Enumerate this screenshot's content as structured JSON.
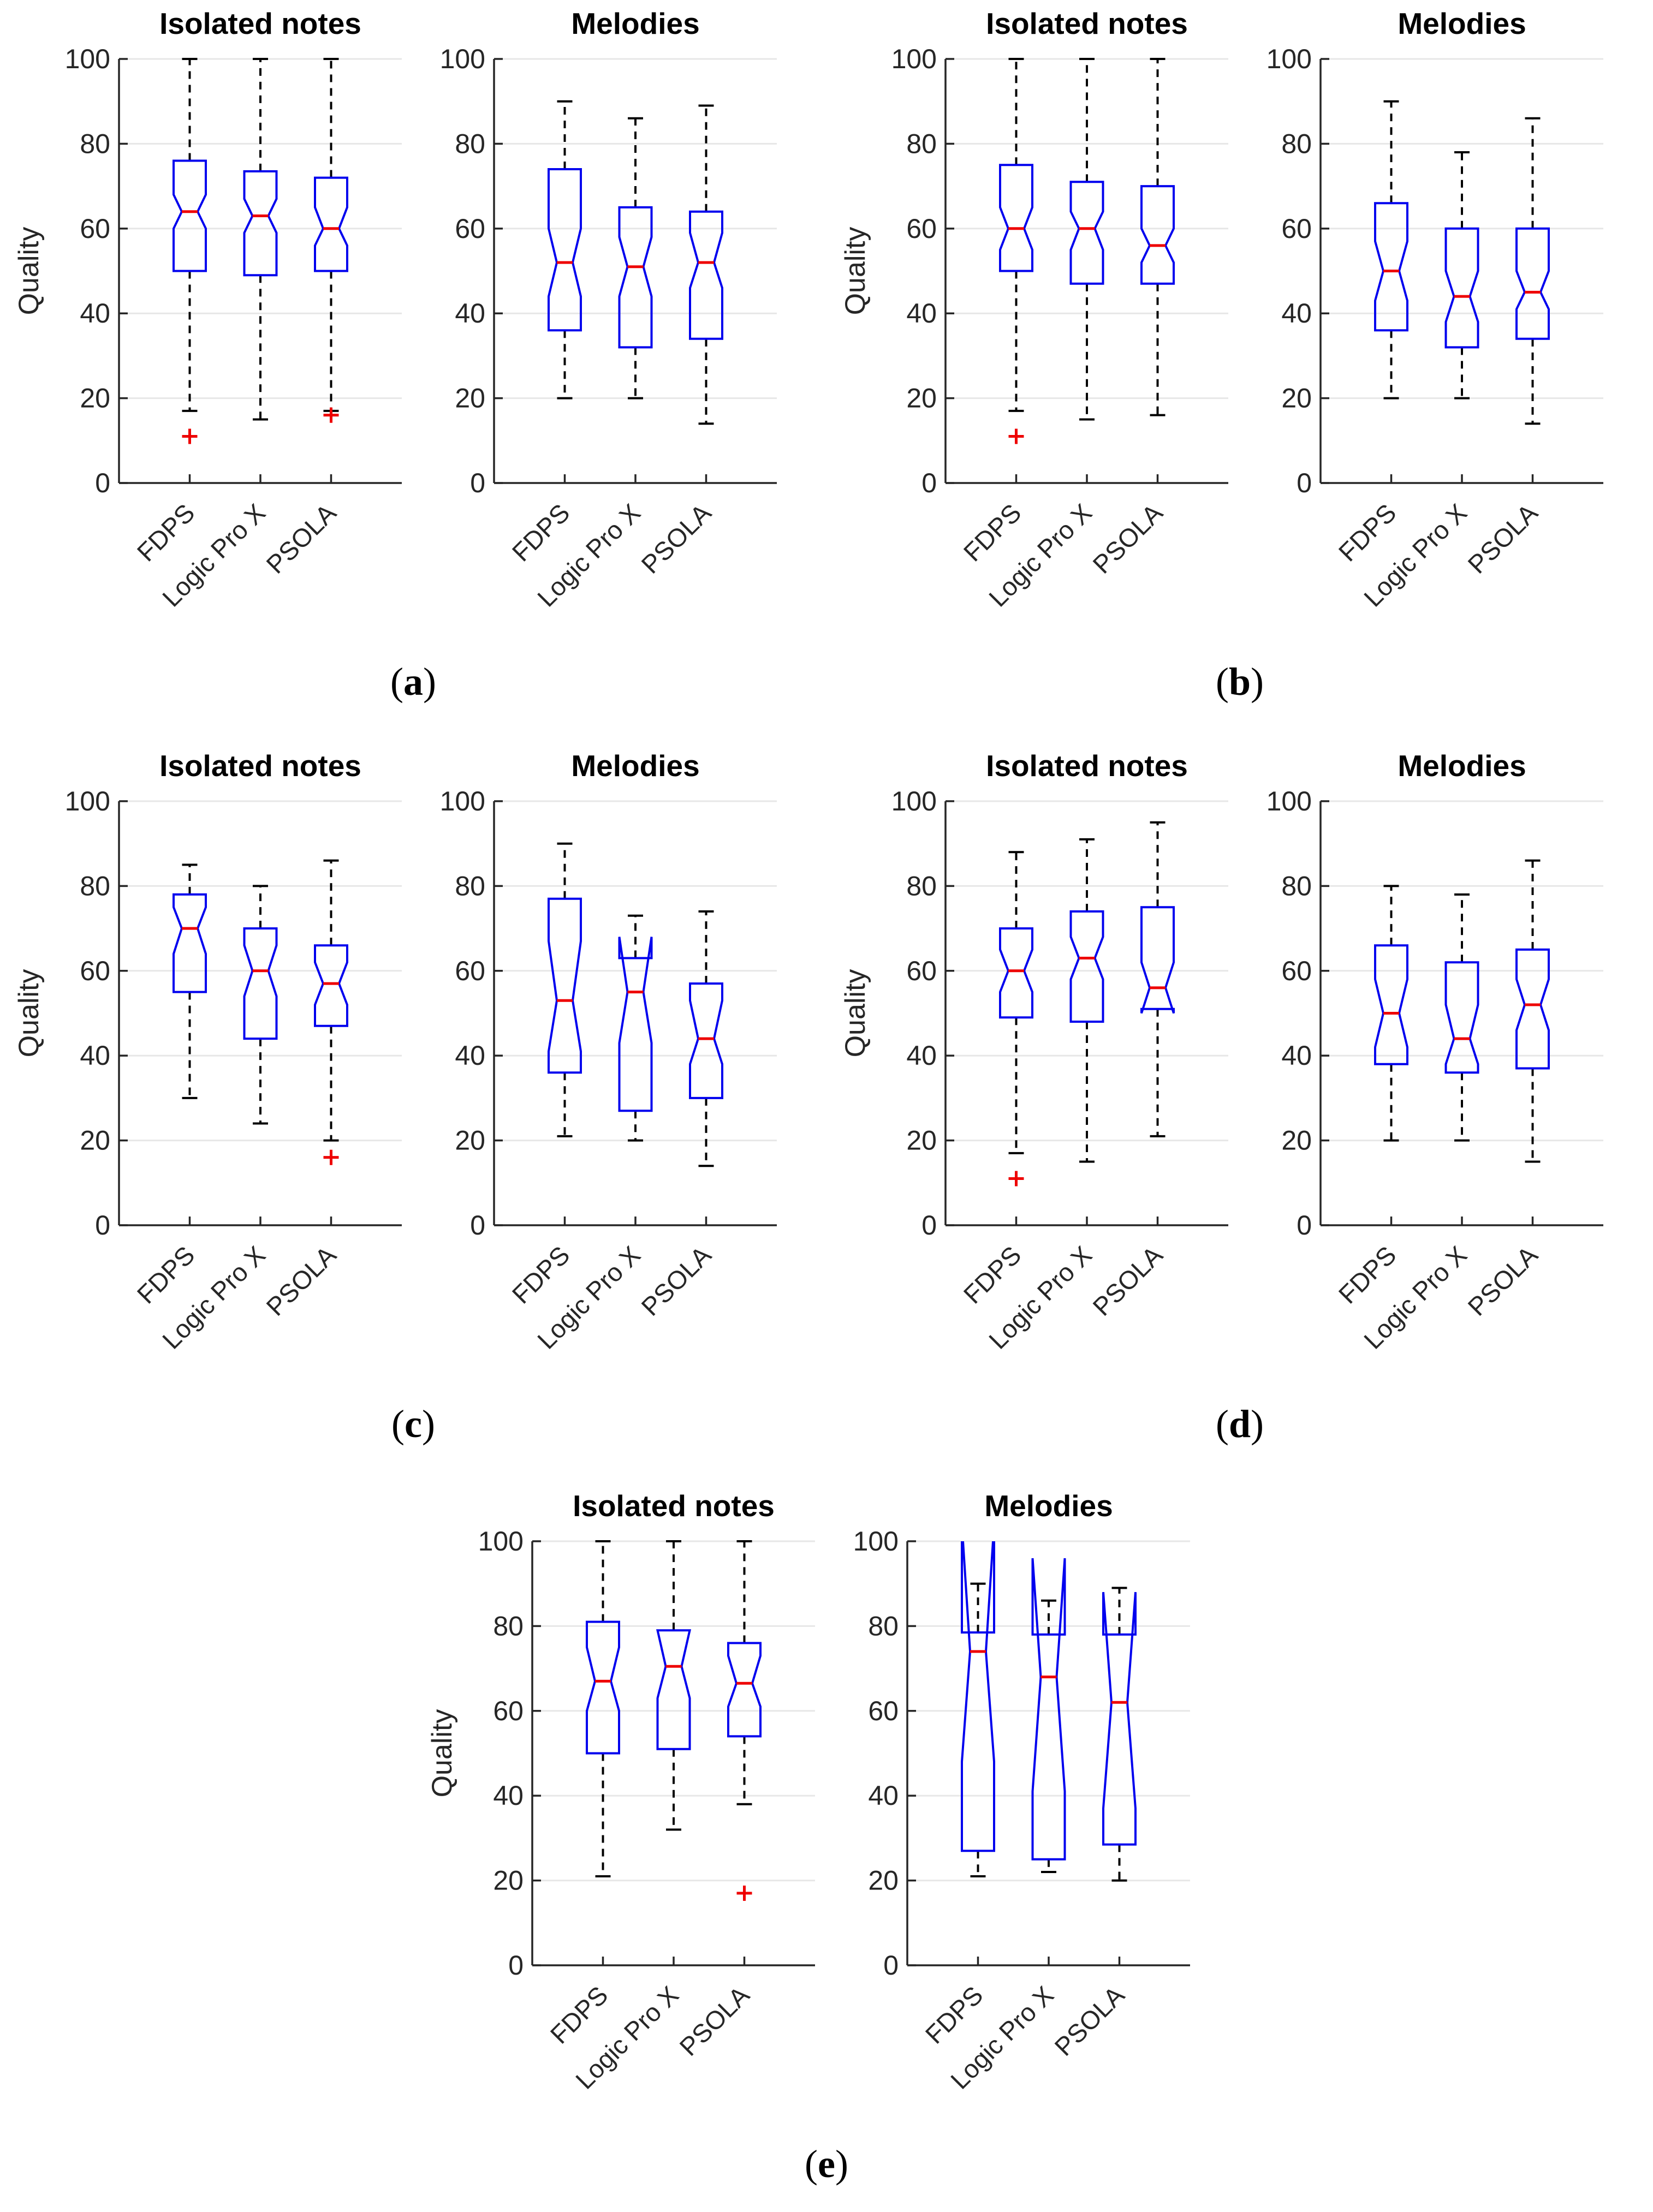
{
  "figure": {
    "caption_open": "(",
    "caption_close": ")",
    "panels": [
      {
        "caption_letter": "a"
      },
      {
        "caption_letter": "b"
      },
      {
        "caption_letter": "c"
      },
      {
        "caption_letter": "d"
      },
      {
        "caption_letter": "e"
      }
    ],
    "colors": {
      "box": "#0000ee",
      "median": "#ee0000",
      "whisker": "#000000",
      "outlier": "#ee0000",
      "grid": "#e7e7e7",
      "axis": "#262626",
      "text": "#262626",
      "title": "#000000"
    }
  },
  "chart_data": [
    {
      "type": "boxplot",
      "notched": true,
      "panel": "a",
      "side": "left",
      "title": "Isolated notes",
      "ylabel": "Quality",
      "categories": [
        "FDPS",
        "Logic Pro X",
        "PSOLA"
      ],
      "ylim": [
        0,
        100
      ],
      "yticks": [
        0,
        20,
        40,
        60,
        80,
        100
      ],
      "grid": true,
      "boxes": [
        {
          "label": "FDPS",
          "whislo": 17,
          "q1": 50,
          "med": 64,
          "q3": 76,
          "whishi": 100,
          "notch_lo": 60,
          "notch_hi": 68,
          "fliers": [
            11
          ]
        },
        {
          "label": "Logic Pro X",
          "whislo": 15,
          "q1": 49,
          "med": 63,
          "q3": 73.5,
          "whishi": 100,
          "notch_lo": 59,
          "notch_hi": 67,
          "fliers": []
        },
        {
          "label": "PSOLA",
          "whislo": 17,
          "q1": 50,
          "med": 60,
          "q3": 72,
          "whishi": 100,
          "notch_lo": 56,
          "notch_hi": 65,
          "fliers": [
            16
          ]
        }
      ]
    },
    {
      "type": "boxplot",
      "notched": true,
      "panel": "a",
      "side": "right",
      "title": "Melodies",
      "ylabel": "",
      "categories": [
        "FDPS",
        "Logic Pro X",
        "PSOLA"
      ],
      "ylim": [
        0,
        100
      ],
      "yticks": [
        0,
        20,
        40,
        60,
        80,
        100
      ],
      "grid": true,
      "boxes": [
        {
          "label": "FDPS",
          "whislo": 20,
          "q1": 36,
          "med": 52,
          "q3": 74,
          "whishi": 90,
          "notch_lo": 44,
          "notch_hi": 60,
          "fliers": []
        },
        {
          "label": "Logic Pro X",
          "whislo": 20,
          "q1": 32,
          "med": 51,
          "q3": 65,
          "whishi": 86,
          "notch_lo": 44,
          "notch_hi": 58,
          "fliers": []
        },
        {
          "label": "PSOLA",
          "whislo": 14,
          "q1": 34,
          "med": 52,
          "q3": 64,
          "whishi": 89,
          "notch_lo": 46,
          "notch_hi": 59,
          "fliers": []
        }
      ]
    },
    {
      "type": "boxplot",
      "notched": true,
      "panel": "b",
      "side": "left",
      "title": "Isolated notes",
      "ylabel": "Quality",
      "categories": [
        "FDPS",
        "Logic Pro X",
        "PSOLA"
      ],
      "ylim": [
        0,
        100
      ],
      "yticks": [
        0,
        20,
        40,
        60,
        80,
        100
      ],
      "grid": true,
      "boxes": [
        {
          "label": "FDPS",
          "whislo": 17,
          "q1": 50,
          "med": 60,
          "q3": 75,
          "whishi": 100,
          "notch_lo": 55,
          "notch_hi": 65,
          "fliers": [
            11
          ]
        },
        {
          "label": "Logic Pro X",
          "whislo": 15,
          "q1": 47,
          "med": 60,
          "q3": 71,
          "whishi": 100,
          "notch_lo": 55,
          "notch_hi": 64,
          "fliers": []
        },
        {
          "label": "PSOLA",
          "whislo": 16,
          "q1": 47,
          "med": 56,
          "q3": 70,
          "whishi": 100,
          "notch_lo": 52,
          "notch_hi": 60,
          "fliers": []
        }
      ]
    },
    {
      "type": "boxplot",
      "notched": true,
      "panel": "b",
      "side": "right",
      "title": "Melodies",
      "ylabel": "",
      "categories": [
        "FDPS",
        "Logic Pro X",
        "PSOLA"
      ],
      "ylim": [
        0,
        100
      ],
      "yticks": [
        0,
        20,
        40,
        60,
        80,
        100
      ],
      "grid": true,
      "boxes": [
        {
          "label": "FDPS",
          "whislo": 20,
          "q1": 36,
          "med": 50,
          "q3": 66,
          "whishi": 90,
          "notch_lo": 43,
          "notch_hi": 57,
          "fliers": []
        },
        {
          "label": "Logic Pro X",
          "whislo": 20,
          "q1": 32,
          "med": 44,
          "q3": 60,
          "whishi": 78,
          "notch_lo": 38,
          "notch_hi": 50,
          "fliers": []
        },
        {
          "label": "PSOLA",
          "whislo": 14,
          "q1": 34,
          "med": 45,
          "q3": 60,
          "whishi": 86,
          "notch_lo": 41,
          "notch_hi": 50,
          "fliers": []
        }
      ]
    },
    {
      "type": "boxplot",
      "notched": true,
      "panel": "c",
      "side": "left",
      "title": "Isolated notes",
      "ylabel": "Quality",
      "categories": [
        "FDPS",
        "Logic Pro X",
        "PSOLA"
      ],
      "ylim": [
        0,
        100
      ],
      "yticks": [
        0,
        20,
        40,
        60,
        80,
        100
      ],
      "grid": true,
      "boxes": [
        {
          "label": "FDPS",
          "whislo": 30,
          "q1": 55,
          "med": 70,
          "q3": 78,
          "whishi": 85,
          "notch_lo": 64,
          "notch_hi": 75,
          "fliers": []
        },
        {
          "label": "Logic Pro X",
          "whislo": 24,
          "q1": 44,
          "med": 60,
          "q3": 70,
          "whishi": 80,
          "notch_lo": 54,
          "notch_hi": 66,
          "fliers": []
        },
        {
          "label": "PSOLA",
          "whislo": 20,
          "q1": 47,
          "med": 57,
          "q3": 66,
          "whishi": 86,
          "notch_lo": 52,
          "notch_hi": 62,
          "fliers": [
            16
          ]
        }
      ]
    },
    {
      "type": "boxplot",
      "notched": true,
      "panel": "c",
      "side": "right",
      "title": "Melodies",
      "ylabel": "",
      "categories": [
        "FDPS",
        "Logic Pro X",
        "PSOLA"
      ],
      "ylim": [
        0,
        100
      ],
      "yticks": [
        0,
        20,
        40,
        60,
        80,
        100
      ],
      "grid": true,
      "boxes": [
        {
          "label": "FDPS",
          "whislo": 21,
          "q1": 36,
          "med": 53,
          "q3": 77,
          "whishi": 90,
          "notch_lo": 41,
          "notch_hi": 67,
          "fliers": []
        },
        {
          "label": "Logic Pro X",
          "whislo": 20,
          "q1": 27,
          "med": 55,
          "q3": 63,
          "whishi": 73,
          "notch_lo": 43,
          "notch_hi": 68,
          "fliers": []
        },
        {
          "label": "PSOLA",
          "whislo": 14,
          "q1": 30,
          "med": 44,
          "q3": 57,
          "whishi": 74,
          "notch_lo": 38,
          "notch_hi": 53,
          "fliers": []
        }
      ]
    },
    {
      "type": "boxplot",
      "notched": true,
      "panel": "d",
      "side": "left",
      "title": "Isolated notes",
      "ylabel": "Quality",
      "categories": [
        "FDPS",
        "Logic Pro X",
        "PSOLA"
      ],
      "ylim": [
        0,
        100
      ],
      "yticks": [
        0,
        20,
        40,
        60,
        80,
        100
      ],
      "grid": true,
      "boxes": [
        {
          "label": "FDPS",
          "whislo": 17,
          "q1": 49,
          "med": 60,
          "q3": 70,
          "whishi": 88,
          "notch_lo": 55,
          "notch_hi": 65,
          "fliers": [
            11
          ]
        },
        {
          "label": "Logic Pro X",
          "whislo": 15,
          "q1": 48,
          "med": 63,
          "q3": 74,
          "whishi": 91,
          "notch_lo": 58,
          "notch_hi": 68,
          "fliers": []
        },
        {
          "label": "PSOLA",
          "whislo": 21,
          "q1": 51,
          "med": 56,
          "q3": 75,
          "whishi": 95,
          "notch_lo": 50,
          "notch_hi": 62,
          "fliers": []
        }
      ]
    },
    {
      "type": "boxplot",
      "notched": true,
      "panel": "d",
      "side": "right",
      "title": "Melodies",
      "ylabel": "",
      "categories": [
        "FDPS",
        "Logic Pro X",
        "PSOLA"
      ],
      "ylim": [
        0,
        100
      ],
      "yticks": [
        0,
        20,
        40,
        60,
        80,
        100
      ],
      "grid": true,
      "boxes": [
        {
          "label": "FDPS",
          "whislo": 20,
          "q1": 38,
          "med": 50,
          "q3": 66,
          "whishi": 80,
          "notch_lo": 42,
          "notch_hi": 58,
          "fliers": []
        },
        {
          "label": "Logic Pro X",
          "whislo": 20,
          "q1": 36,
          "med": 44,
          "q3": 62,
          "whishi": 78,
          "notch_lo": 38,
          "notch_hi": 52,
          "fliers": []
        },
        {
          "label": "PSOLA",
          "whislo": 15,
          "q1": 37,
          "med": 52,
          "q3": 65,
          "whishi": 86,
          "notch_lo": 46,
          "notch_hi": 58,
          "fliers": []
        }
      ]
    },
    {
      "type": "boxplot",
      "notched": true,
      "panel": "e",
      "side": "left",
      "title": "Isolated notes",
      "ylabel": "Quality",
      "categories": [
        "FDPS",
        "Logic Pro X",
        "PSOLA"
      ],
      "ylim": [
        0,
        100
      ],
      "yticks": [
        0,
        20,
        40,
        60,
        80,
        100
      ],
      "grid": true,
      "boxes": [
        {
          "label": "FDPS",
          "whislo": 21,
          "q1": 50,
          "med": 67,
          "q3": 81,
          "whishi": 100,
          "notch_lo": 60,
          "notch_hi": 75,
          "fliers": []
        },
        {
          "label": "Logic Pro X",
          "whislo": 32,
          "q1": 51,
          "med": 70.5,
          "q3": 79,
          "whishi": 100,
          "notch_lo": 63,
          "notch_hi": 79,
          "fliers": []
        },
        {
          "label": "PSOLA",
          "whislo": 38,
          "q1": 54,
          "med": 66.5,
          "q3": 76,
          "whishi": 100,
          "notch_lo": 61,
          "notch_hi": 73,
          "fliers": [
            17
          ]
        }
      ]
    },
    {
      "type": "boxplot",
      "notched": true,
      "panel": "e",
      "side": "right",
      "title": "Melodies",
      "ylabel": "",
      "categories": [
        "FDPS",
        "Logic Pro X",
        "PSOLA"
      ],
      "ylim": [
        0,
        100
      ],
      "yticks": [
        0,
        20,
        40,
        60,
        80,
        100
      ],
      "grid": true,
      "boxes": [
        {
          "label": "FDPS",
          "whislo": 21,
          "q1": 27,
          "med": 74,
          "q3": 78.5,
          "whishi": 90,
          "notch_lo": 48,
          "notch_hi": 104,
          "fliers": []
        },
        {
          "label": "Logic Pro X",
          "whislo": 22,
          "q1": 25,
          "med": 68,
          "q3": 78,
          "whishi": 86,
          "notch_lo": 41,
          "notch_hi": 96,
          "fliers": []
        },
        {
          "label": "PSOLA",
          "whislo": 20,
          "q1": 28.5,
          "med": 62,
          "q3": 78,
          "whishi": 89,
          "notch_lo": 37,
          "notch_hi": 88,
          "fliers": []
        }
      ]
    }
  ]
}
